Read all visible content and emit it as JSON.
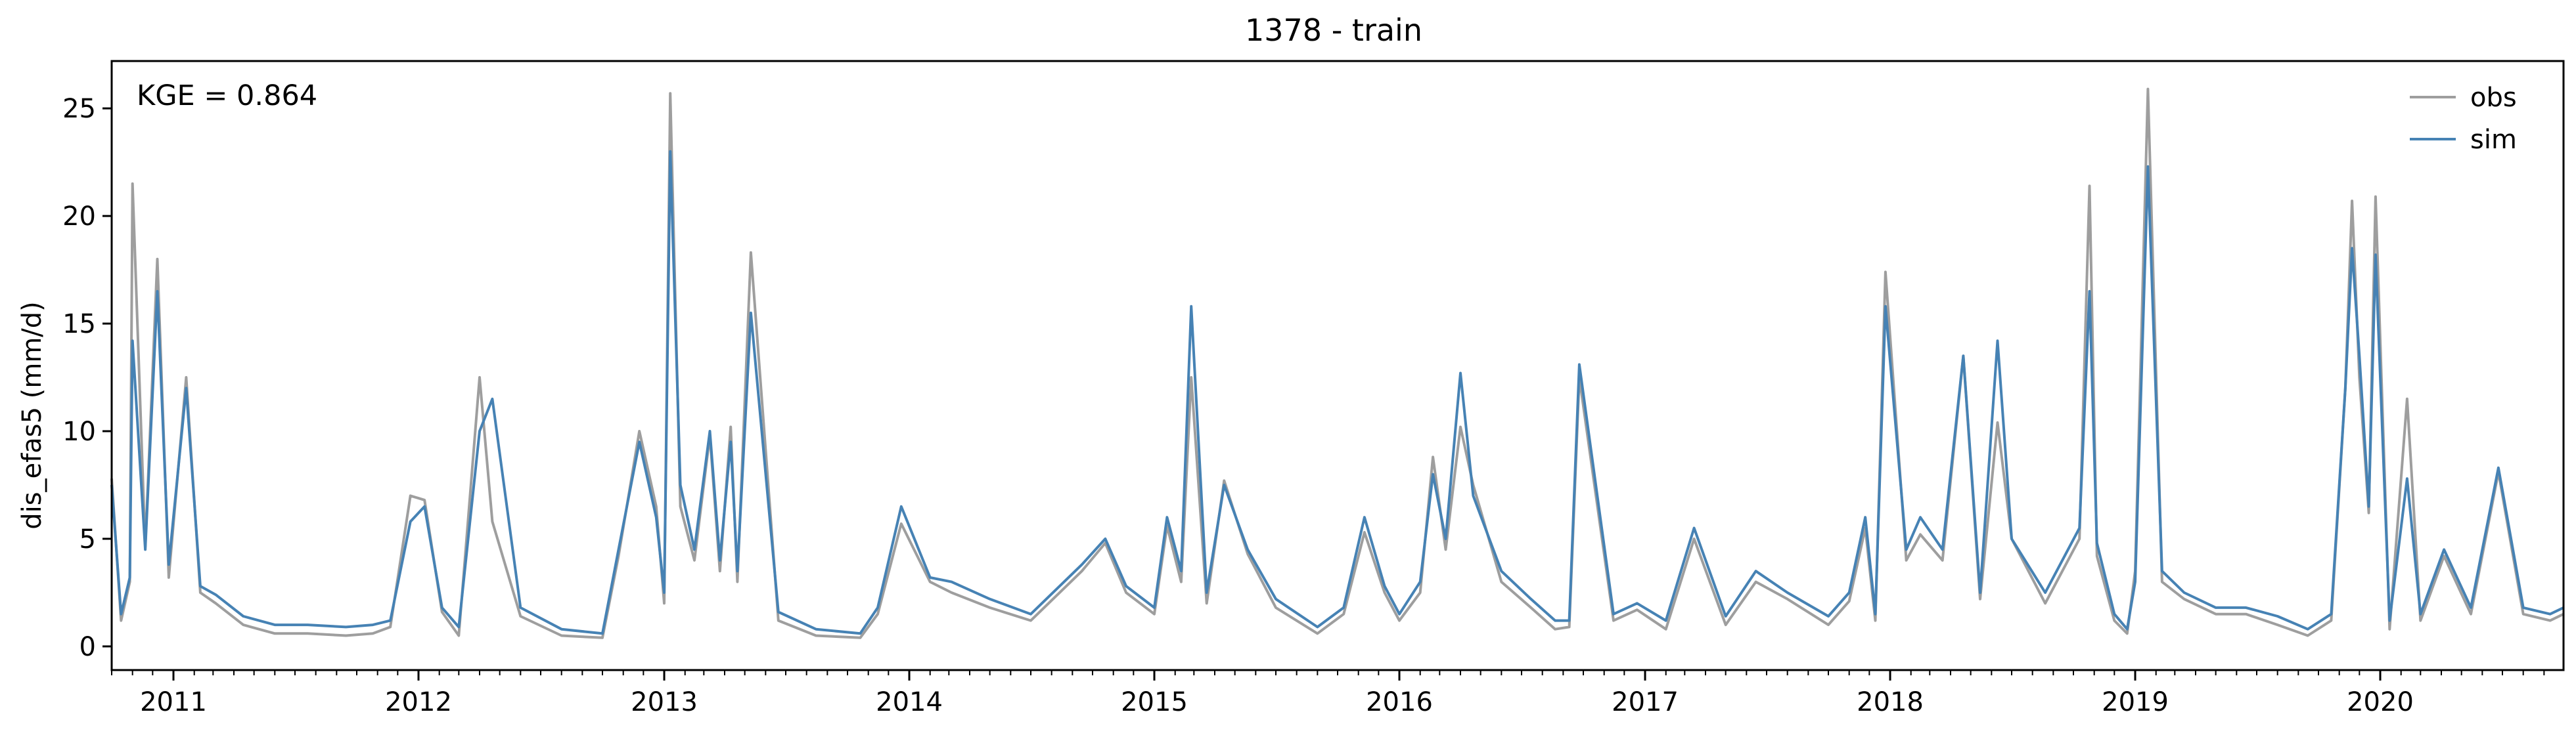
{
  "chart_data": {
    "type": "line",
    "title": "1378 - train",
    "xlabel": "",
    "ylabel": "dis_efas5 (mm/d)",
    "annotation": "KGE = 0.864",
    "x_range": [
      "2010-10-01",
      "2020-09-30"
    ],
    "ylim": [
      -1.1,
      27.2
    ],
    "y_ticks": [
      0,
      5,
      10,
      15,
      20,
      25
    ],
    "x_ticks": [
      {
        "date": "2011-01-01",
        "label": "2011"
      },
      {
        "date": "2012-01-01",
        "label": "2012"
      },
      {
        "date": "2013-01-01",
        "label": "2013"
      },
      {
        "date": "2014-01-01",
        "label": "2014"
      },
      {
        "date": "2015-01-01",
        "label": "2015"
      },
      {
        "date": "2016-01-01",
        "label": "2016"
      },
      {
        "date": "2017-01-01",
        "label": "2017"
      },
      {
        "date": "2018-01-01",
        "label": "2018"
      },
      {
        "date": "2019-01-01",
        "label": "2019"
      },
      {
        "date": "2020-01-01",
        "label": "2020"
      }
    ],
    "grid": false,
    "legend_position": "top-right",
    "series": [
      {
        "name": "obs",
        "color": "#9e9e9e",
        "x": [
          "2010-10-01",
          "2010-10-15",
          "2010-10-28",
          "2010-11-01",
          "2010-11-20",
          "2010-12-08",
          "2010-12-25",
          "2011-01-20",
          "2011-02-10",
          "2011-03-05",
          "2011-04-15",
          "2011-06-01",
          "2011-07-20",
          "2011-09-15",
          "2011-10-25",
          "2011-11-20",
          "2011-12-20",
          "2012-01-10",
          "2012-02-05",
          "2012-03-01",
          "2012-04-01",
          "2012-04-20",
          "2012-06-01",
          "2012-08-01",
          "2012-10-01",
          "2012-10-25",
          "2012-11-25",
          "2012-12-20",
          "2013-01-01",
          "2013-01-10",
          "2013-01-25",
          "2013-02-15",
          "2013-03-10",
          "2013-03-25",
          "2013-04-10",
          "2013-04-20",
          "2013-05-10",
          "2013-06-20",
          "2013-08-15",
          "2013-10-20",
          "2013-11-15",
          "2013-12-20",
          "2014-02-01",
          "2014-03-05",
          "2014-05-01",
          "2014-07-01",
          "2014-09-15",
          "2014-10-20",
          "2014-11-20",
          "2015-01-01",
          "2015-01-20",
          "2015-02-10",
          "2015-02-25",
          "2015-03-20",
          "2015-04-15",
          "2015-05-20",
          "2015-07-01",
          "2015-09-01",
          "2015-10-10",
          "2015-11-10",
          "2015-12-10",
          "2016-01-01",
          "2016-02-01",
          "2016-02-20",
          "2016-03-10",
          "2016-04-01",
          "2016-04-20",
          "2016-06-01",
          "2016-07-15",
          "2016-08-20",
          "2016-09-10",
          "2016-09-25",
          "2016-11-15",
          "2016-12-20",
          "2017-02-01",
          "2017-03-15",
          "2017-05-01",
          "2017-06-15",
          "2017-08-01",
          "2017-10-01",
          "2017-11-01",
          "2017-11-25",
          "2017-12-10",
          "2017-12-25",
          "2018-01-25",
          "2018-02-15",
          "2018-03-20",
          "2018-04-20",
          "2018-05-15",
          "2018-06-10",
          "2018-07-01",
          "2018-08-20",
          "2018-10-10",
          "2018-10-25",
          "2018-11-05",
          "2018-12-01",
          "2018-12-20",
          "2019-01-01",
          "2019-01-20",
          "2019-02-10",
          "2019-03-15",
          "2019-05-01",
          "2019-06-15",
          "2019-08-01",
          "2019-09-15",
          "2019-10-20",
          "2019-11-10",
          "2019-11-20",
          "2019-12-01",
          "2019-12-15",
          "2019-12-25",
          "2020-01-15",
          "2020-02-10",
          "2020-03-01",
          "2020-04-05",
          "2020-05-15",
          "2020-06-25",
          "2020-08-01",
          "2020-09-10",
          "2020-09-30"
        ],
        "y": [
          7.8,
          1.2,
          3.0,
          21.5,
          4.6,
          18.0,
          3.2,
          12.5,
          2.5,
          2.0,
          1.0,
          0.6,
          0.6,
          0.5,
          0.6,
          0.9,
          7.0,
          6.8,
          1.6,
          0.5,
          12.5,
          5.8,
          1.4,
          0.5,
          0.4,
          4.2,
          10.0,
          6.5,
          2.0,
          25.7,
          6.5,
          4.0,
          9.8,
          3.5,
          10.2,
          3.0,
          18.3,
          1.2,
          0.5,
          0.4,
          1.5,
          5.7,
          3.0,
          2.5,
          1.8,
          1.2,
          3.5,
          4.8,
          2.5,
          1.5,
          5.6,
          3.0,
          12.5,
          2.0,
          7.7,
          4.3,
          1.8,
          0.6,
          1.5,
          5.3,
          2.5,
          1.2,
          2.5,
          8.8,
          4.5,
          10.2,
          7.5,
          3.0,
          1.8,
          0.8,
          0.9,
          12.5,
          1.2,
          1.7,
          0.8,
          5.0,
          1.0,
          3.0,
          2.2,
          1.0,
          2.1,
          5.5,
          1.2,
          17.4,
          4.0,
          5.2,
          4.0,
          13.5,
          2.2,
          10.4,
          5.0,
          2.0,
          5.0,
          21.4,
          4.2,
          1.2,
          0.6,
          3.5,
          25.9,
          3.0,
          2.2,
          1.5,
          1.5,
          1.0,
          0.5,
          1.2,
          12.0,
          20.7,
          12.5,
          6.2,
          20.9,
          0.8,
          11.5,
          1.2,
          4.2,
          1.5,
          8.1,
          1.5,
          1.2,
          1.5
        ]
      },
      {
        "name": "sim",
        "color": "#4682b4",
        "x": [
          "2010-10-01",
          "2010-10-15",
          "2010-10-28",
          "2010-11-01",
          "2010-11-20",
          "2010-12-08",
          "2010-12-25",
          "2011-01-20",
          "2011-02-10",
          "2011-03-05",
          "2011-04-15",
          "2011-06-01",
          "2011-07-20",
          "2011-09-15",
          "2011-10-25",
          "2011-11-20",
          "2011-12-20",
          "2012-01-10",
          "2012-02-05",
          "2012-03-01",
          "2012-04-01",
          "2012-04-20",
          "2012-06-01",
          "2012-08-01",
          "2012-10-01",
          "2012-10-25",
          "2012-11-25",
          "2012-12-20",
          "2013-01-01",
          "2013-01-10",
          "2013-01-25",
          "2013-02-15",
          "2013-03-10",
          "2013-03-25",
          "2013-04-10",
          "2013-04-20",
          "2013-05-10",
          "2013-06-20",
          "2013-08-15",
          "2013-10-20",
          "2013-11-15",
          "2013-12-20",
          "2014-02-01",
          "2014-03-05",
          "2014-05-01",
          "2014-07-01",
          "2014-09-15",
          "2014-10-20",
          "2014-11-20",
          "2015-01-01",
          "2015-01-20",
          "2015-02-10",
          "2015-02-25",
          "2015-03-20",
          "2015-04-15",
          "2015-05-20",
          "2015-07-01",
          "2015-09-01",
          "2015-10-10",
          "2015-11-10",
          "2015-12-10",
          "2016-01-01",
          "2016-02-01",
          "2016-02-20",
          "2016-03-10",
          "2016-04-01",
          "2016-04-20",
          "2016-06-01",
          "2016-07-15",
          "2016-08-20",
          "2016-09-10",
          "2016-09-25",
          "2016-11-15",
          "2016-12-20",
          "2017-02-01",
          "2017-03-15",
          "2017-05-01",
          "2017-06-15",
          "2017-08-01",
          "2017-10-01",
          "2017-11-01",
          "2017-11-25",
          "2017-12-10",
          "2017-12-25",
          "2018-01-25",
          "2018-02-15",
          "2018-03-20",
          "2018-04-20",
          "2018-05-15",
          "2018-06-10",
          "2018-07-01",
          "2018-08-20",
          "2018-10-10",
          "2018-10-25",
          "2018-11-05",
          "2018-12-01",
          "2018-12-20",
          "2019-01-01",
          "2019-01-20",
          "2019-02-10",
          "2019-03-15",
          "2019-05-01",
          "2019-06-15",
          "2019-08-01",
          "2019-09-15",
          "2019-10-20",
          "2019-11-10",
          "2019-11-20",
          "2019-12-01",
          "2019-12-15",
          "2019-12-25",
          "2020-01-15",
          "2020-02-10",
          "2020-03-01",
          "2020-04-05",
          "2020-05-15",
          "2020-06-25",
          "2020-08-01",
          "2020-09-10",
          "2020-09-30"
        ],
        "y": [
          7.5,
          1.5,
          3.2,
          14.2,
          4.5,
          16.5,
          3.8,
          12.0,
          2.8,
          2.4,
          1.4,
          1.0,
          1.0,
          0.9,
          1.0,
          1.2,
          5.8,
          6.5,
          1.8,
          0.9,
          10.0,
          11.5,
          1.8,
          0.8,
          0.6,
          4.5,
          9.5,
          6.0,
          2.5,
          23.0,
          7.5,
          4.5,
          10.0,
          4.0,
          9.5,
          3.5,
          15.5,
          1.6,
          0.8,
          0.6,
          1.8,
          6.5,
          3.2,
          3.0,
          2.2,
          1.5,
          3.8,
          5.0,
          2.8,
          1.8,
          6.0,
          3.5,
          15.8,
          2.5,
          7.5,
          4.5,
          2.2,
          0.9,
          1.8,
          6.0,
          2.8,
          1.5,
          3.0,
          8.0,
          5.0,
          12.7,
          7.0,
          3.5,
          2.2,
          1.2,
          1.2,
          13.1,
          1.5,
          2.0,
          1.2,
          5.5,
          1.4,
          3.5,
          2.5,
          1.4,
          2.5,
          6.0,
          1.5,
          15.8,
          4.5,
          6.0,
          4.5,
          13.5,
          2.5,
          14.2,
          5.0,
          2.5,
          5.5,
          16.5,
          4.8,
          1.5,
          0.8,
          3.0,
          22.3,
          3.5,
          2.5,
          1.8,
          1.8,
          1.4,
          0.8,
          1.5,
          12.0,
          18.5,
          13.5,
          6.5,
          18.2,
          1.2,
          7.8,
          1.5,
          4.5,
          1.8,
          8.3,
          1.8,
          1.5,
          1.8
        ]
      }
    ]
  }
}
